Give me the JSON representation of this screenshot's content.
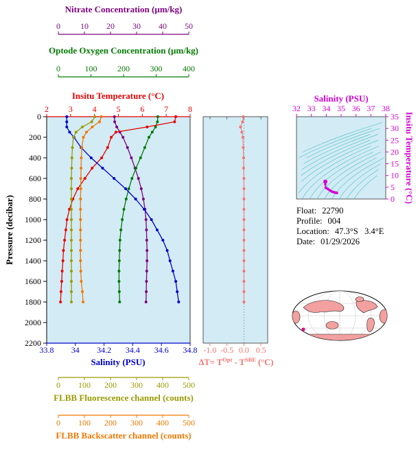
{
  "info": {
    "lines": [
      {
        "label": "Float:",
        "value": "22790"
      },
      {
        "label": "Profile:",
        "value": "004"
      },
      {
        "label": "Location:",
        "value": "47.3°S   3.4°E"
      },
      {
        "label": "Date:",
        "value": "01/29/2026"
      }
    ]
  },
  "chart_data": [
    {
      "id": "depth-profiles",
      "type": "line",
      "ylabel": "Pressure (decibar)",
      "ylim": [
        0,
        2200
      ],
      "ytick_values": [
        0,
        200,
        400,
        600,
        800,
        1000,
        1200,
        1400,
        1600,
        1800,
        2000,
        2200
      ],
      "ytick_labels": [
        "0",
        "200",
        "400",
        "600",
        "800",
        "1000",
        "1200",
        "1400",
        "1600",
        "1800",
        "2000",
        "2200"
      ],
      "background": "#d2ebf5",
      "pressure": [
        0,
        50,
        100,
        150,
        200,
        300,
        400,
        500,
        600,
        700,
        800,
        900,
        1000,
        1100,
        1200,
        1300,
        1400,
        1500,
        1600,
        1700,
        1800
      ],
      "series": [
        {
          "name": "Nitrate Concentration (µm/kg)",
          "color": "#7d007d",
          "xlim": [
            0,
            50
          ],
          "tick_values": [
            0,
            10,
            20,
            30,
            40,
            50
          ],
          "tick_labels": [
            "0",
            "10",
            "20",
            "30",
            "40",
            "50"
          ],
          "values": [
            21.5,
            21.6,
            22.4,
            23.6,
            24.8,
            26.5,
            28,
            29.4,
            30.7,
            31.8,
            32.6,
            33.2,
            33.6,
            33.8,
            33.9,
            34,
            34,
            33.9,
            33.8,
            33.7,
            33.6
          ]
        },
        {
          "name": "Optode Oxygen Concentration (µm/kg)",
          "color": "#007a00",
          "xlim": [
            0,
            400
          ],
          "tick_values": [
            0,
            100,
            200,
            300,
            400
          ],
          "tick_labels": [
            "0",
            "100",
            "200",
            "300",
            "400"
          ],
          "values": [
            305,
            304,
            298,
            288,
            278,
            265,
            252,
            238,
            226,
            216,
            208,
            201,
            196,
            192,
            189,
            188,
            187,
            186,
            186,
            187,
            188
          ]
        },
        {
          "name": "Insitu Temperature (°C)",
          "color": "#e60000",
          "xlim": [
            2,
            8
          ],
          "tick_values": [
            2,
            3,
            4,
            5,
            6,
            7,
            8
          ],
          "tick_labels": [
            "2",
            "3",
            "4",
            "5",
            "6",
            "7",
            "8"
          ],
          "values": [
            7.4,
            7.35,
            6.2,
            4.9,
            4.7,
            4.55,
            4.3,
            3.9,
            3.6,
            3.3,
            3.1,
            2.95,
            2.85,
            2.8,
            2.75,
            2.7,
            2.68,
            2.65,
            2.63,
            2.6,
            2.58
          ]
        },
        {
          "name": "Salinity (PSU)",
          "color": "#0000cc",
          "xlim": [
            33.8,
            34.8
          ],
          "tick_values": [
            33.8,
            34,
            34.2,
            34.4,
            34.6,
            34.8
          ],
          "tick_labels": [
            "33.8",
            "34",
            "34.2",
            "34.4",
            "34.6",
            "34.8"
          ],
          "values": [
            33.94,
            33.94,
            33.94,
            33.96,
            33.99,
            34.04,
            34.11,
            34.19,
            34.27,
            34.35,
            34.42,
            34.48,
            34.53,
            34.57,
            34.61,
            34.64,
            34.66,
            34.68,
            34.7,
            34.71,
            34.72
          ]
        },
        {
          "name": "FLBB Fluorescence channel (counts)",
          "color": "#9a9a00",
          "xlim": [
            0,
            500
          ],
          "tick_values": [
            0,
            100,
            200,
            300,
            400,
            500
          ],
          "tick_labels": [
            "0",
            "100",
            "200",
            "300",
            "400",
            "500"
          ],
          "values": [
            140,
            128,
            92,
            68,
            58,
            54,
            52,
            51,
            50,
            50,
            50,
            50,
            50,
            50,
            50,
            50,
            50,
            50,
            50,
            50,
            50
          ]
        },
        {
          "name": "FLBB Backscatter channel (counts)",
          "color": "#f07800",
          "xlim": [
            0,
            500
          ],
          "tick_values": [
            0,
            100,
            200,
            300,
            400,
            500
          ],
          "tick_labels": [
            "0",
            "100",
            "200",
            "300",
            "400",
            "500"
          ],
          "values": [
            165,
            158,
            130,
            108,
            96,
            90,
            88,
            87,
            86,
            86,
            85,
            85,
            85,
            85,
            85,
            85,
            85,
            86,
            88,
            92,
            95
          ]
        }
      ]
    },
    {
      "id": "temperature-difference",
      "type": "scatter",
      "color": "#f4736d",
      "background": "#d2ebf5",
      "xlim": [
        -1.2,
        0.7
      ],
      "xtick_values": [
        -1,
        -0.5,
        0,
        0.5
      ],
      "xtick_labels": [
        "-1.0",
        "-0.5",
        "0.0",
        "0.5"
      ],
      "xlabel_parts": {
        "p1": "ΔT= T",
        "s1": "Opt",
        "p2": " - T",
        "s2": "SBE",
        "p3": " (°C)"
      },
      "pressure": [
        0,
        50,
        100,
        150,
        200,
        300,
        400,
        500,
        600,
        700,
        800,
        900,
        1000,
        1100,
        1200,
        1300,
        1400,
        1500,
        1600,
        1700,
        1800
      ],
      "values": [
        -0.02,
        -0.04,
        -0.1,
        -0.06,
        -0.03,
        -0.02,
        -0.01,
        -0.01,
        0,
        0,
        0,
        0,
        0,
        0,
        0,
        0,
        0,
        0,
        0,
        0,
        0
      ]
    },
    {
      "id": "ts-diagram",
      "type": "line",
      "xlabel": "Salinity (PSU)",
      "ylabel": "Insitu Temperature (°C)",
      "color": "#d400d4",
      "contour_color": "#3fbfbf",
      "background": "#d2ebf5",
      "xlim": [
        32,
        38
      ],
      "xtick_values": [
        32,
        33,
        34,
        35,
        36,
        37,
        38
      ],
      "xtick_labels": [
        "32",
        "33",
        "34",
        "35",
        "36",
        "37",
        "38"
      ],
      "ylim": [
        0,
        35
      ],
      "ytick_values": [
        0,
        5,
        10,
        15,
        20,
        25,
        30,
        35
      ],
      "ytick_labels": [
        "0",
        "5",
        "10",
        "15",
        "20",
        "25",
        "30",
        "35"
      ],
      "salinity": [
        33.94,
        33.94,
        33.94,
        33.96,
        33.99,
        34.04,
        34.11,
        34.19,
        34.27,
        34.35,
        34.42,
        34.48,
        34.53,
        34.57,
        34.61,
        34.64,
        34.66,
        34.68,
        34.7,
        34.71,
        34.72
      ],
      "temperature": [
        7.4,
        7.35,
        6.2,
        4.9,
        4.7,
        4.55,
        4.3,
        3.9,
        3.6,
        3.3,
        3.1,
        2.95,
        2.85,
        2.8,
        2.75,
        2.7,
        2.68,
        2.65,
        2.63,
        2.6,
        2.58
      ]
    }
  ]
}
